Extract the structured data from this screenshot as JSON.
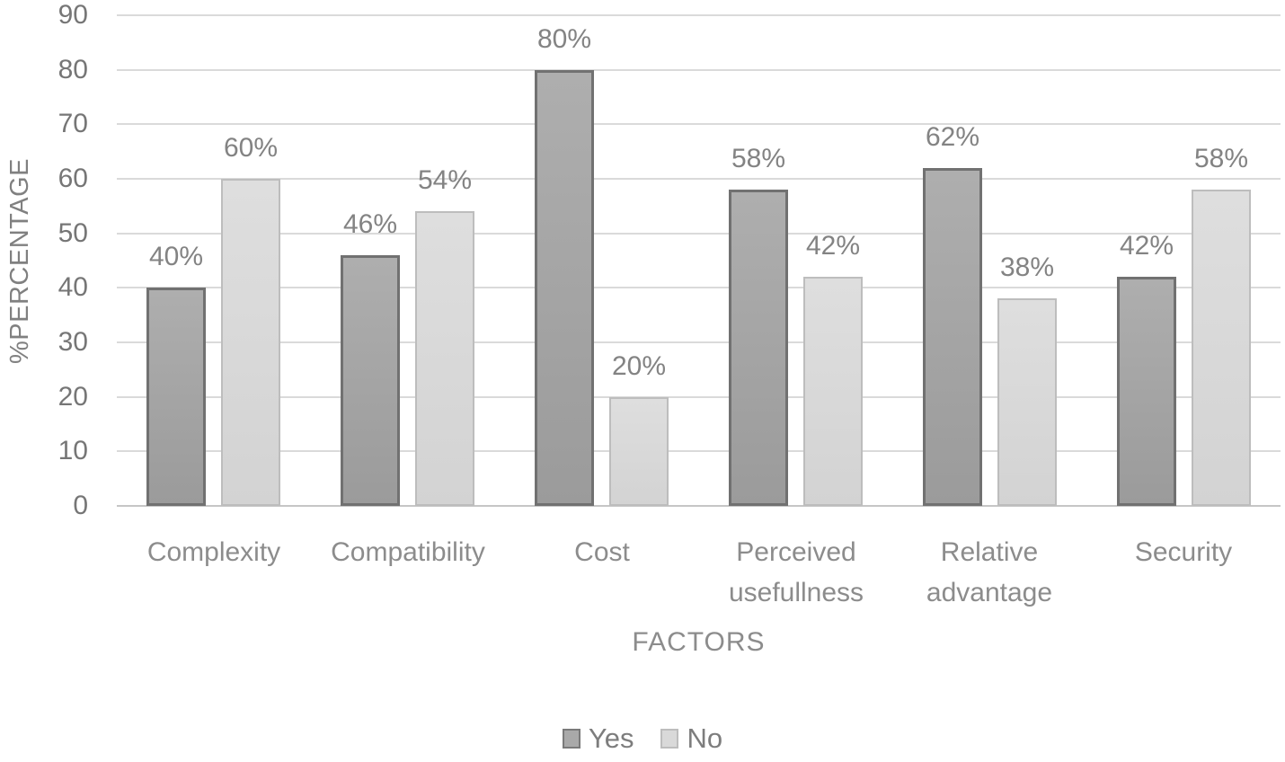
{
  "chart_data": {
    "type": "bar",
    "title": "",
    "categories": [
      "Complexity",
      "Compatibility",
      "Cost",
      "Perceived\nusefullness",
      "Relative\nadvantage",
      "Security"
    ],
    "series": [
      {
        "name": "Yes",
        "values": [
          40,
          46,
          80,
          58,
          62,
          42
        ],
        "data_labels": [
          "40%",
          "46%",
          "80%",
          "58%",
          "62%",
          "42%"
        ],
        "fill": "#a6a6a6",
        "border": "#717171"
      },
      {
        "name": "No",
        "values": [
          60,
          54,
          20,
          42,
          38,
          58
        ],
        "data_labels": [
          "60%",
          "54%",
          "20%",
          "42%",
          "38%",
          "58%"
        ],
        "fill": "#d9d9d9",
        "border": "#bdbdbd"
      }
    ],
    "xlabel": "FACTORS",
    "ylabel": "%PERCENTAGE",
    "ylim": [
      0,
      90
    ],
    "ytick_interval": 10,
    "yticks": [
      "0",
      "10",
      "20",
      "30",
      "40",
      "50",
      "60",
      "70",
      "80",
      "90"
    ],
    "grid": true,
    "legend_position": "bottom",
    "legend_labels": [
      "Yes",
      "No"
    ],
    "colors": {
      "grid": "#dadada",
      "axis_line": "#c6c6c6",
      "tick_text": "#767676",
      "category_text": "#8c8c8c",
      "data_label_text": "#838383",
      "background": "#ffffff"
    }
  }
}
